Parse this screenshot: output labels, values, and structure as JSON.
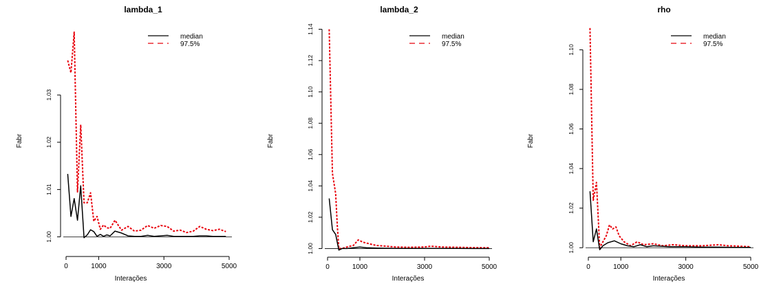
{
  "colors": {
    "median": "#000000",
    "q975": "#e8000b",
    "hline": "#000000"
  },
  "chart_data": [
    {
      "type": "line",
      "title": "lambda_1",
      "xlabel": "Interações",
      "ylabel": "Fabr",
      "xlim": [
        0,
        5000
      ],
      "ylim": [
        0.997,
        1.045
      ],
      "xticks": [
        0,
        1000,
        3000,
        5000
      ],
      "yticks": [
        1.0,
        1.01,
        1.02,
        1.03
      ],
      "ytick_labels": [
        "1.00",
        "1.01",
        "1.02",
        "1.03"
      ],
      "hline": 1.0,
      "legend": {
        "position": "top-right",
        "entries": [
          "median",
          "97.5%"
        ]
      },
      "series": [
        {
          "name": "median",
          "style": "solid",
          "x": [
            50,
            150,
            250,
            350,
            450,
            550,
            650,
            750,
            850,
            950,
            1050,
            1150,
            1250,
            1350,
            1500,
            1700,
            1900,
            2100,
            2300,
            2500,
            2700,
            2900,
            3100,
            3300,
            3500,
            3700,
            3900,
            4100,
            4300,
            4500,
            4700,
            4900
          ],
          "y": [
            1.0133,
            1.0043,
            1.0081,
            1.0035,
            1.0108,
            0.9998,
            1.0004,
            1.0015,
            1.0011,
            1.0001,
            1.0005,
            1.0001,
            1.0004,
            1.0002,
            1.0012,
            1.0008,
            1.0002,
            1.0001,
            1.0001,
            1.0003,
            1.0001,
            1.0002,
            1.0003,
            1.0001,
            1.0001,
            1.0001,
            1.0001,
            1.0002,
            1.0002,
            1.0001,
            1.0001,
            1.0001
          ]
        },
        {
          "name": "97.5%",
          "style": "dashed",
          "x": [
            50,
            150,
            250,
            350,
            450,
            550,
            650,
            750,
            850,
            950,
            1050,
            1150,
            1250,
            1350,
            1500,
            1700,
            1900,
            2100,
            2300,
            2500,
            2700,
            2900,
            3100,
            3300,
            3500,
            3700,
            3900,
            4100,
            4300,
            4500,
            4700,
            4900
          ],
          "y": [
            1.0373,
            1.0347,
            1.0433,
            1.0095,
            1.0237,
            1.0072,
            1.0072,
            1.0093,
            1.0033,
            1.0043,
            1.0016,
            1.0025,
            1.0019,
            1.0018,
            1.0035,
            1.0014,
            1.0022,
            1.0012,
            1.0014,
            1.0024,
            1.0018,
            1.0024,
            1.0022,
            1.0012,
            1.0014,
            1.0009,
            1.0012,
            1.0022,
            1.0016,
            1.0013,
            1.0016,
            1.0011
          ]
        }
      ]
    },
    {
      "type": "line",
      "title": "lambda_2",
      "xlabel": "Interações",
      "ylabel": "Fabr",
      "xlim": [
        0,
        5000
      ],
      "ylim": [
        0.998,
        1.142
      ],
      "xticks": [
        0,
        1000,
        3000,
        5000
      ],
      "yticks": [
        1.0,
        1.02,
        1.04,
        1.06,
        1.08,
        1.1,
        1.12,
        1.14
      ],
      "ytick_labels": [
        "1.00",
        "1.02",
        "1.04",
        "1.06",
        "1.08",
        "1.10",
        "1.12",
        "1.14"
      ],
      "hline": 1.0,
      "legend": {
        "position": "top-right",
        "entries": [
          "median",
          "97.5%"
        ]
      },
      "series": [
        {
          "name": "median",
          "style": "solid",
          "x": [
            50,
            150,
            250,
            350,
            450,
            600,
            800,
            1000,
            1200,
            1500,
            1800,
            2100,
            2500,
            3000,
            3500,
            4000,
            4500,
            5000
          ],
          "y": [
            1.032,
            1.012,
            1.009,
            0.999,
            1.0,
            1.0,
            1.0005,
            1.001,
            1.0005,
            1.0003,
            1.0002,
            1.0001,
            1.0001,
            1.0001,
            1.0001,
            1.0001,
            1.0,
            1.0
          ]
        },
        {
          "name": "97.5%",
          "style": "dashed",
          "x": [
            50,
            150,
            250,
            300,
            350,
            450,
            600,
            800,
            950,
            1100,
            1300,
            1500,
            1800,
            2100,
            2500,
            3000,
            3200,
            3500,
            4000,
            4500,
            5000
          ],
          "y": [
            1.14,
            1.048,
            1.035,
            1.015,
            1.0,
            1.0,
            1.001,
            1.002,
            1.0055,
            1.004,
            1.003,
            1.002,
            1.0015,
            1.001,
            1.0008,
            1.001,
            1.0015,
            1.001,
            1.0008,
            1.0006,
            1.0005
          ]
        }
      ]
    },
    {
      "type": "line",
      "title": "rho",
      "xlabel": "Interações",
      "ylabel": "Fabr",
      "xlim": [
        0,
        5000
      ],
      "ylim": [
        0.998,
        1.113
      ],
      "xticks": [
        0,
        1000,
        3000,
        5000
      ],
      "yticks": [
        1.0,
        1.02,
        1.04,
        1.06,
        1.08,
        1.1
      ],
      "ytick_labels": [
        "1.00",
        "1.02",
        "1.04",
        "1.06",
        "1.08",
        "1.10"
      ],
      "hline": 1.0,
      "legend": {
        "position": "top-right",
        "entries": [
          "median",
          "97.5%"
        ]
      },
      "series": [
        {
          "name": "median",
          "style": "solid",
          "x": [
            50,
            150,
            250,
            350,
            450,
            600,
            800,
            1000,
            1200,
            1400,
            1600,
            1800,
            2000,
            2500,
            3000,
            3500,
            4000,
            4500,
            5000
          ],
          "y": [
            1.0285,
            1.003,
            1.0095,
            0.999,
            1.001,
            1.0025,
            1.0035,
            1.002,
            1.001,
            1.0005,
            1.0015,
            1.0005,
            1.001,
            1.0005,
            1.0005,
            1.0003,
            1.0003,
            1.0002,
            1.0002
          ]
        },
        {
          "name": "97.5%",
          "style": "dashed",
          "x": [
            50,
            150,
            250,
            350,
            450,
            550,
            650,
            750,
            850,
            950,
            1100,
            1300,
            1500,
            1700,
            2000,
            2300,
            2600,
            3000,
            3500,
            4000,
            4300,
            4600,
            5000
          ],
          "y": [
            1.111,
            1.024,
            1.033,
            1.0,
            1.003,
            1.006,
            1.0115,
            1.0095,
            1.0105,
            1.006,
            1.003,
            1.001,
            1.003,
            1.0015,
            1.002,
            1.001,
            1.0015,
            1.001,
            1.001,
            1.0015,
            1.001,
            1.0008,
            1.0005
          ]
        }
      ]
    }
  ]
}
